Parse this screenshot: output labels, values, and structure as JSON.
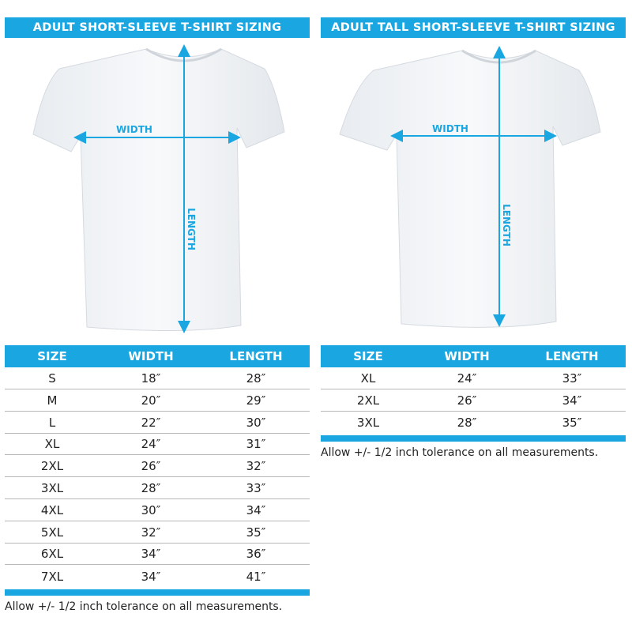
{
  "accent_color": "#1aa7e1",
  "left": {
    "title": "ADULT SHORT-SLEEVE T-SHIRT SIZING",
    "width_label": "WIDTH",
    "length_label": "LENGTH",
    "columns": [
      "SIZE",
      "WIDTH",
      "LENGTH"
    ],
    "rows": [
      [
        "S",
        "18″",
        "28″"
      ],
      [
        "M",
        "20″",
        "29″"
      ],
      [
        "L",
        "22″",
        "30″"
      ],
      [
        "XL",
        "24″",
        "31″"
      ],
      [
        "2XL",
        "26″",
        "32″"
      ],
      [
        "3XL",
        "28″",
        "33″"
      ],
      [
        "4XL",
        "30″",
        "34″"
      ],
      [
        "5XL",
        "32″",
        "35″"
      ],
      [
        "6XL",
        "34″",
        "36″"
      ],
      [
        "7XL",
        "34″",
        "41″"
      ]
    ],
    "note": "Allow +/- 1/2 inch tolerance on all measurements."
  },
  "right": {
    "title": "ADULT TALL SHORT-SLEEVE T-SHIRT SIZING",
    "width_label": "WIDTH",
    "length_label": "LENGTH",
    "columns": [
      "SIZE",
      "WIDTH",
      "LENGTH"
    ],
    "rows": [
      [
        "XL",
        "24″",
        "33″"
      ],
      [
        "2XL",
        "26″",
        "34″"
      ],
      [
        "3XL",
        "28″",
        "35″"
      ]
    ],
    "note": "Allow +/- 1/2 inch tolerance on all measurements."
  }
}
